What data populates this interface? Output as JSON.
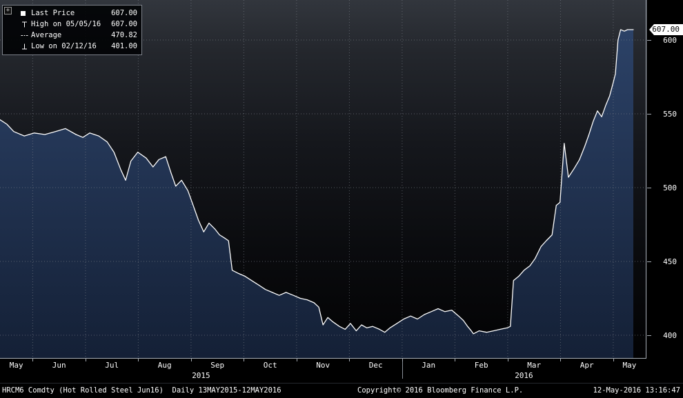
{
  "legend": {
    "collapse_icon": "+",
    "items": [
      {
        "marker": "last-price-square",
        "label": "Last Price",
        "value": "607.00"
      },
      {
        "marker": "high-tick",
        "label": "High on 05/05/16",
        "value": "607.00"
      },
      {
        "marker": "average-dashed",
        "label": "Average",
        "value": "470.82"
      },
      {
        "marker": "low-tick",
        "label": "Low on 02/12/16",
        "value": "401.00"
      }
    ]
  },
  "y_axis": {
    "ticks": [
      "600",
      "550",
      "500",
      "450",
      "400"
    ],
    "last_price_label": "607.00"
  },
  "x_axis": {
    "months": [
      "May",
      "Jun",
      "Jul",
      "Aug",
      "Sep",
      "Oct",
      "Nov",
      "Dec",
      "Jan",
      "Feb",
      "Mar",
      "Apr",
      "May"
    ],
    "years": [
      "2015",
      "2016"
    ]
  },
  "footer": {
    "left": "HRCM6 Comdty (Hot Rolled Steel Jun16)  Daily 13MAY2015-12MAY2016",
    "center": "Copyright© 2016 Bloomberg Finance L.P.",
    "right": "12-May-2016 13:16:47"
  },
  "chart_data": {
    "type": "area",
    "title": "HRCM6 Comdty (Hot Rolled Steel Jun16) Last Price",
    "xlabel": "",
    "ylabel": "",
    "x_unit": "months since 13-May-2015",
    "xlim_dates": [
      "13MAY2015",
      "12MAY2016"
    ],
    "ylim": [
      384,
      627
    ],
    "yticks": [
      400,
      450,
      500,
      550,
      600
    ],
    "xtick_labels": [
      "May",
      "Jun",
      "Jul",
      "Aug",
      "Sep",
      "Oct",
      "Nov",
      "Dec",
      "Jan",
      "Feb",
      "Mar",
      "Apr",
      "May"
    ],
    "grid": "dotted",
    "legend_position": "top-left",
    "line_color": "#ffffff",
    "fill_color": "#1d2e4a",
    "last_price": 607.0,
    "average": 470.82,
    "high": {
      "date": "05/05/16",
      "value": 607.0
    },
    "low": {
      "date": "02/12/16",
      "value": 401.0
    },
    "x": [
      0,
      0.13,
      0.26,
      0.46,
      0.65,
      0.85,
      1.05,
      1.24,
      1.44,
      1.57,
      1.7,
      1.87,
      2.03,
      2.16,
      2.29,
      2.38,
      2.48,
      2.61,
      2.77,
      2.9,
      3.01,
      3.14,
      3.24,
      3.33,
      3.44,
      3.56,
      3.66,
      3.76,
      3.86,
      3.96,
      4.07,
      4.16,
      4.25,
      4.33,
      4.4,
      4.51,
      4.64,
      4.77,
      4.9,
      5.03,
      5.16,
      5.29,
      5.42,
      5.56,
      5.69,
      5.82,
      5.95,
      6.04,
      6.12,
      6.21,
      6.31,
      6.43,
      6.54,
      6.64,
      6.75,
      6.85,
      6.95,
      7.06,
      7.19,
      7.29,
      7.39,
      7.52,
      7.65,
      7.78,
      7.91,
      8.04,
      8.17,
      8.3,
      8.43,
      8.56,
      8.69,
      8.78,
      8.86,
      8.93,
      8.97,
      9.08,
      9.22,
      9.35,
      9.48,
      9.61,
      9.67,
      9.73,
      9.83,
      9.93,
      10.04,
      10.14,
      10.25,
      10.35,
      10.46,
      10.54,
      10.61,
      10.69,
      10.77,
      10.88,
      10.98,
      11.08,
      11.16,
      11.24,
      11.32,
      11.4,
      11.48,
      11.55,
      11.61,
      11.66,
      11.71,
      11.76,
      11.83,
      11.89,
      12.0
    ],
    "values": [
      546,
      543,
      538,
      535,
      537,
      536,
      538,
      540,
      536,
      534,
      537,
      535,
      531,
      524,
      512,
      505,
      518,
      524,
      520,
      514,
      519,
      521,
      510,
      501,
      505,
      498,
      488,
      478,
      470,
      476,
      472,
      468,
      466,
      464,
      444,
      442,
      440,
      437,
      434,
      431,
      429,
      427,
      429,
      427,
      425,
      424,
      422,
      419,
      407,
      412,
      409,
      406,
      404,
      408,
      403,
      407,
      405,
      406,
      404,
      402,
      405,
      408,
      411,
      413,
      411,
      414,
      416,
      418,
      416,
      417,
      413,
      410,
      406,
      403,
      401,
      403,
      402,
      403,
      404,
      405,
      406,
      437,
      440,
      444,
      447,
      452,
      460,
      464,
      468,
      488,
      490,
      530,
      507,
      513,
      519,
      528,
      536,
      545,
      552,
      548,
      556,
      562,
      570,
      577,
      600,
      607,
      606,
      607,
      607
    ]
  }
}
